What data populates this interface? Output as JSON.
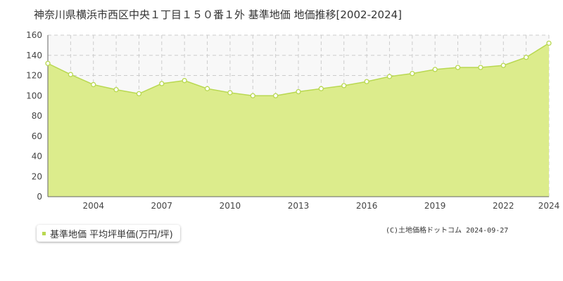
{
  "title": "神奈川県横浜市西区中央１丁目１５０番１外 基準地価 地価推移[2002-2024]",
  "legend_label": "基準地価 平均坪単価(万円/坪)",
  "copyright": "(C)土地価格ドットコム 2024-09-27",
  "colors": {
    "fill": "#dcec8c",
    "line": "#b8d850",
    "point_stroke": "#b8d850",
    "point_fill": "#ffffff",
    "grid": "#cccccc",
    "plot_bg": "#f8f8f8",
    "legend_swatch": "#b8d850"
  },
  "chart_data": {
    "type": "area",
    "title": "",
    "xlabel": "",
    "ylabel": "",
    "ylim": [
      0,
      160
    ],
    "yticks": [
      0,
      20,
      40,
      60,
      80,
      100,
      120,
      140,
      160
    ],
    "xlim": [
      2002,
      2024
    ],
    "xticks": [
      2004,
      2007,
      2010,
      2013,
      2016,
      2019,
      2022,
      2024
    ],
    "grid": true,
    "legend_position": "bottom-left",
    "series": [
      {
        "name": "基準地価 平均坪単価(万円/坪)",
        "x": [
          2002,
          2003,
          2004,
          2005,
          2006,
          2007,
          2008,
          2009,
          2010,
          2011,
          2012,
          2013,
          2014,
          2015,
          2016,
          2017,
          2018,
          2019,
          2020,
          2021,
          2022,
          2023,
          2024
        ],
        "values": [
          132,
          121,
          111,
          106,
          102,
          112,
          115,
          107,
          103,
          100,
          100,
          104,
          107,
          110,
          114,
          119,
          122,
          126,
          128,
          128,
          130,
          138,
          152
        ]
      }
    ]
  }
}
